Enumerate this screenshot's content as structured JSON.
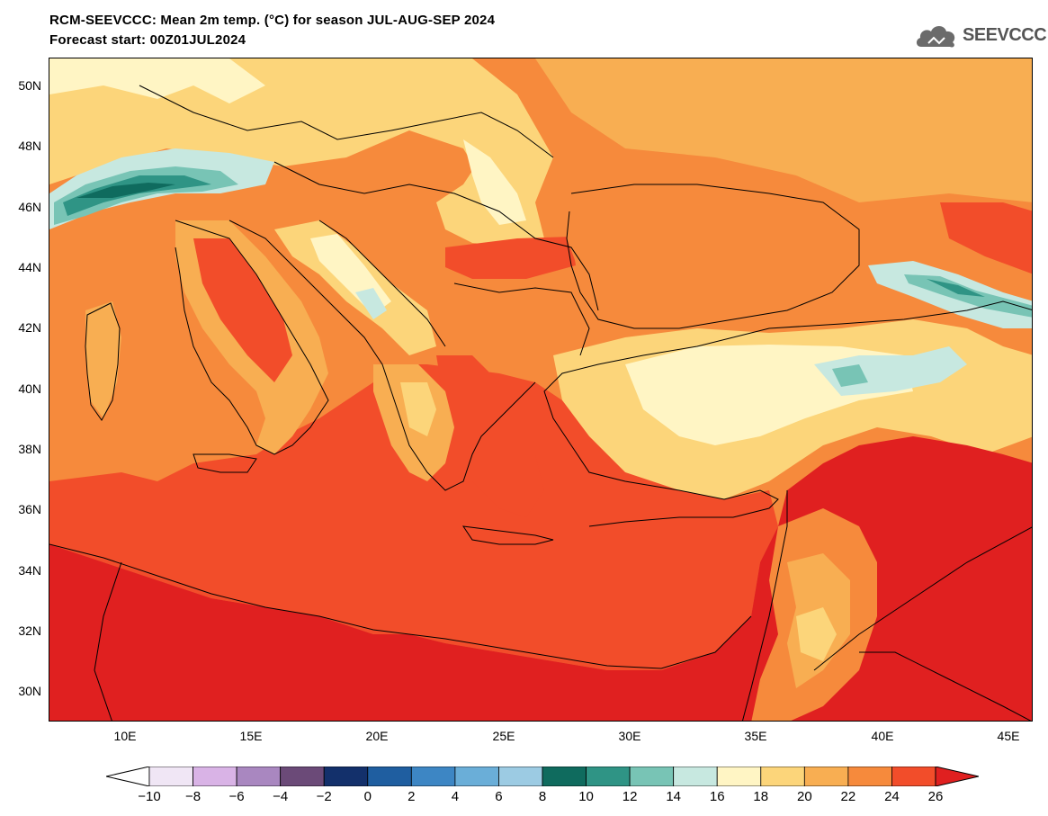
{
  "header": {
    "title_line1": "RCM-SEEVCCC: Mean 2m temp. (°C) for season JUL-AUG-SEP 2024",
    "title_line2": "Forecast start: 00Z01JUL2024"
  },
  "logo": {
    "text": "SEEVCCC",
    "icon": "cloud-icon"
  },
  "map": {
    "extent": {
      "lon_min": 7,
      "lon_max": 46,
      "lat_min": 29,
      "lat_max": 51
    },
    "y_ticks": [
      "50N",
      "48N",
      "46N",
      "44N",
      "42N",
      "40N",
      "38N",
      "36N",
      "34N",
      "32N",
      "30N"
    ],
    "x_ticks": [
      "10E",
      "15E",
      "20E",
      "25E",
      "30E",
      "35E",
      "40E",
      "45E"
    ]
  },
  "colorbar": {
    "labels": [
      "−10",
      "−8",
      "−6",
      "−4",
      "−2",
      "0",
      "2",
      "4",
      "6",
      "8",
      "10",
      "12",
      "14",
      "16",
      "18",
      "20",
      "22",
      "24",
      "26"
    ],
    "under_color": "#ffffff",
    "over_color": "#e02020",
    "colors": [
      "#f0e6f5",
      "#d9b3e6",
      "#a987c0",
      "#6b4a78",
      "#13306b",
      "#1f5ea0",
      "#3d86c4",
      "#6aaed8",
      "#9ccbe3",
      "#0f6b5e",
      "#2f9485",
      "#78c4b5",
      "#c7e8e0",
      "#fff5c4",
      "#fcd57a",
      "#f8ae52",
      "#f68a3c",
      "#f24d2a"
    ]
  }
}
